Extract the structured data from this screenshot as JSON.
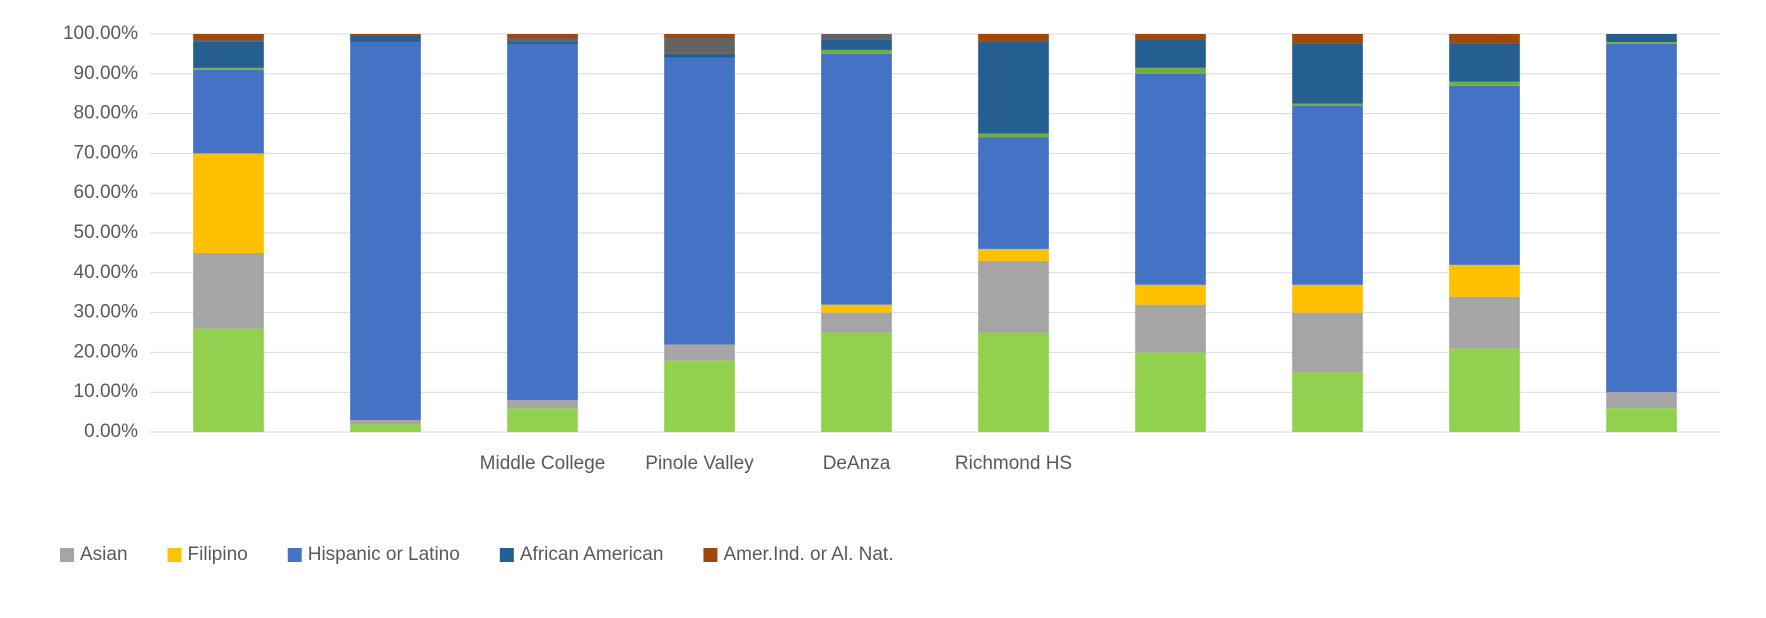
{
  "chart_data": {
    "type": "stacked_bar",
    "categories": [
      null,
      null,
      "Middle College",
      "Pinole Valley",
      "DeAnza",
      "Richmond HS",
      null,
      null,
      null,
      null
    ],
    "series": [
      {
        "name": null,
        "color": "#92d050",
        "values": [
          26,
          2,
          6,
          18,
          25,
          25,
          20,
          15,
          21,
          6
        ]
      },
      {
        "name": "Asian",
        "color": "#a5a5a5",
        "values": [
          19,
          1,
          2,
          4,
          5,
          18,
          12,
          15,
          13,
          4
        ]
      },
      {
        "name": "Filipino",
        "color": "#ffc000",
        "values": [
          25,
          0,
          0,
          0,
          2,
          3,
          5,
          7,
          8,
          0
        ]
      },
      {
        "name": "Hispanic or Latino",
        "color": "#4472c4",
        "values": [
          21,
          95,
          89.5,
          72,
          63,
          28,
          53,
          45,
          45,
          87.5
        ]
      },
      {
        "name": null,
        "color": "#70ad47",
        "values": [
          0.5,
          0,
          0,
          0,
          1,
          1,
          1.5,
          0.5,
          1,
          0.5
        ]
      },
      {
        "name": "African American",
        "color": "#255e91",
        "values": [
          6.5,
          1.5,
          0.5,
          1,
          2.5,
          23,
          7,
          15,
          9.5,
          2
        ]
      },
      {
        "name": null,
        "color": "#636363",
        "values": [
          0.5,
          0,
          1,
          4,
          1.5,
          0,
          0,
          0,
          0,
          0
        ]
      },
      {
        "name": "Amer.Ind. or Al. Nat.",
        "color": "#9e480e",
        "values": [
          1.5,
          0.5,
          1,
          1,
          0,
          2,
          1.5,
          2.5,
          2.5,
          0
        ]
      }
    ],
    "ylim": [
      0,
      100
    ],
    "yticks": [
      {
        "value": 0,
        "label": "0.00%"
      },
      {
        "value": 10,
        "label": "10.00%"
      },
      {
        "value": 20,
        "label": "20.00%"
      },
      {
        "value": 30,
        "label": "30.00%"
      },
      {
        "value": 40,
        "label": "40.00%"
      },
      {
        "value": 50,
        "label": "50.00%"
      },
      {
        "value": 60,
        "label": "60.00%"
      },
      {
        "value": 70,
        "label": "70.00%"
      },
      {
        "value": 80,
        "label": "80.00%"
      },
      {
        "value": 90,
        "label": "90.00%"
      },
      {
        "value": 100,
        "label": "100.00%"
      }
    ],
    "grid": true
  }
}
